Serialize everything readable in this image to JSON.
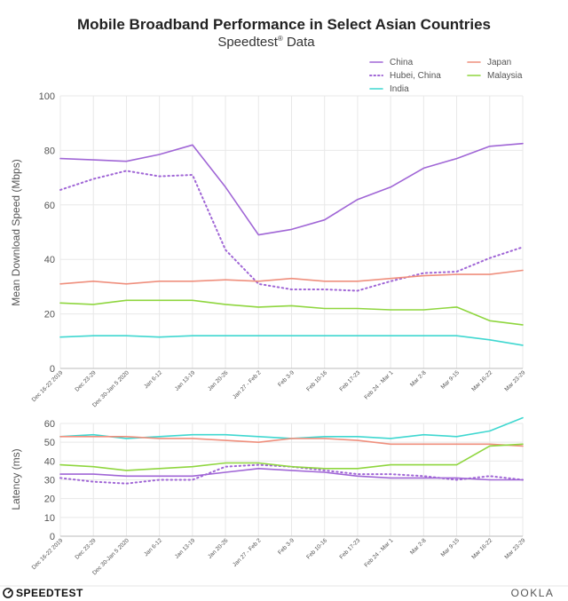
{
  "header": {
    "title": "Mobile Broadband Performance in Select Asian Countries",
    "subtitle_main": "Speedtest",
    "subtitle_reg": "®",
    "subtitle_rest": " Data"
  },
  "footer": {
    "brand": "SPEEDTEST",
    "ookla": "OOKLA"
  },
  "chart_data": [
    {
      "type": "line",
      "ylabel": "Mean Download Speed (Mbps)",
      "ylim": [
        0,
        100
      ],
      "yticks": [
        0,
        20,
        40,
        60,
        80,
        100
      ],
      "grid": true,
      "legend_position": "top-right",
      "categories": [
        "Dec 16-22 2019",
        "Dec 23-29",
        "Dec 30-Jan 5 2020",
        "Jan 6-12",
        "Jan 13-19",
        "Jan 20-26",
        "Jan 27 - Feb 2",
        "Feb 3-9",
        "Feb 10-16",
        "Feb 17-23",
        "Feb 24 - Mar 1",
        "Mar 2-8",
        "Mar 9-15",
        "Mar 16-22",
        "Mar 23-29"
      ],
      "series": [
        {
          "name": "China",
          "color": "#a066d6",
          "dash": false,
          "values": [
            77,
            76.5,
            76,
            78.5,
            82,
            66.5,
            49,
            51,
            54.5,
            62,
            66.5,
            73.5,
            77,
            81.5,
            82.5
          ]
        },
        {
          "name": "Hubei, China",
          "color": "#a066d6",
          "dash": true,
          "values": [
            65.5,
            69.5,
            72.5,
            70.5,
            71,
            43.5,
            31,
            29,
            29,
            28.5,
            32,
            35,
            35.5,
            40.5,
            44.5
          ]
        },
        {
          "name": "India",
          "color": "#3fd7d0",
          "dash": false,
          "values": [
            11.5,
            12,
            12,
            11.5,
            12,
            12,
            12,
            12,
            12,
            12,
            12,
            12,
            12,
            10.5,
            8.5
          ]
        },
        {
          "name": "Japan",
          "color": "#ef8f7d",
          "dash": false,
          "values": [
            31,
            32,
            31,
            32,
            32,
            32.5,
            32,
            33,
            32,
            32,
            33,
            34,
            34.5,
            34.5,
            36
          ]
        },
        {
          "name": "Malaysia",
          "color": "#8fd63f",
          "dash": false,
          "values": [
            24,
            23.5,
            25,
            25,
            25,
            23.5,
            22.5,
            23,
            22,
            22,
            21.5,
            21.5,
            22.5,
            17.5,
            16
          ]
        }
      ]
    },
    {
      "type": "line",
      "ylabel": "Latency (ms)",
      "ylim": [
        0,
        60
      ],
      "yticks": [
        0,
        10,
        20,
        30,
        40,
        50,
        60
      ],
      "grid": true,
      "categories": [
        "Dec 16-22 2019",
        "Dec 23-29",
        "Dec 30-Jan 5 2020",
        "Jan 6-12",
        "Jan 13-19",
        "Jan 20-26",
        "Jan 27 - Feb 2",
        "Feb 3-9",
        "Feb 10-16",
        "Feb 17-23",
        "Feb 24 - Mar 1",
        "Mar 2-8",
        "Mar 9-15",
        "Mar 16-22",
        "Mar 23-29"
      ],
      "series": [
        {
          "name": "China",
          "color": "#a066d6",
          "dash": false,
          "values": [
            33,
            33,
            32,
            32,
            32,
            34,
            36,
            35,
            34,
            32,
            31,
            31,
            31,
            30,
            30
          ]
        },
        {
          "name": "Hubei, China",
          "color": "#a066d6",
          "dash": true,
          "values": [
            31,
            29,
            28,
            30,
            30,
            37,
            38,
            37,
            35,
            33,
            33,
            32,
            30,
            32,
            30
          ]
        },
        {
          "name": "India",
          "color": "#3fd7d0",
          "dash": false,
          "values": [
            53,
            54,
            52,
            53,
            54,
            54,
            53,
            52,
            53,
            53,
            52,
            54,
            53,
            56,
            63
          ]
        },
        {
          "name": "Japan",
          "color": "#ef8f7d",
          "dash": false,
          "values": [
            53,
            53,
            53,
            52,
            52,
            51,
            50,
            52,
            52,
            51,
            49,
            49,
            49,
            49,
            48
          ]
        },
        {
          "name": "Malaysia",
          "color": "#8fd63f",
          "dash": false,
          "values": [
            38,
            37,
            35,
            36,
            37,
            39,
            39,
            37,
            36,
            36,
            38,
            38,
            38,
            48,
            49
          ]
        }
      ]
    }
  ]
}
